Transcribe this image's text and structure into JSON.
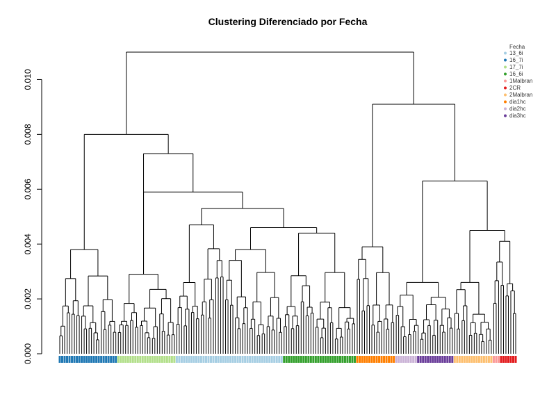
{
  "chart_data": {
    "type": "dendrogram",
    "title": "Clustering Diferenciado por Fecha",
    "xlabel": "",
    "ylabel": "",
    "ylim": [
      0,
      0.011
    ],
    "y_ticks": [
      "0.000",
      "0.002",
      "0.004",
      "0.006",
      "0.008",
      "0.010"
    ],
    "y_tick_values": [
      0,
      0.002,
      0.004,
      0.006,
      0.008,
      0.01
    ],
    "legend": {
      "title": "Fecha",
      "position": "top-right",
      "items": [
        {
          "label": "13_6i",
          "color": "#a6cee3"
        },
        {
          "label": "16_7i",
          "color": "#1f78b4"
        },
        {
          "label": "17_7i",
          "color": "#b2df8a"
        },
        {
          "label": "16_6i",
          "color": "#33a02c"
        },
        {
          "label": "1Malbran",
          "color": "#fb9a99"
        },
        {
          "label": "2CR",
          "color": "#e31a1c"
        },
        {
          "label": "2Malbran",
          "color": "#fdbf6f"
        },
        {
          "label": "dia1hc",
          "color": "#ff7f00"
        },
        {
          "label": "dia2hc",
          "color": "#cab2d6"
        },
        {
          "label": "dia3hc",
          "color": "#6a3d9a"
        }
      ]
    },
    "leaf_groups": [
      {
        "label": "16_7i",
        "count": 24
      },
      {
        "label": "17_7i",
        "count": 24
      },
      {
        "label": "13_6i",
        "count": 44
      },
      {
        "label": "16_6i",
        "count": 30
      },
      {
        "label": "dia1hc",
        "count": 16
      },
      {
        "label": "dia2hc",
        "count": 9
      },
      {
        "label": "dia3hc",
        "count": 15
      },
      {
        "label": "2Malbran",
        "count": 16
      },
      {
        "label": "1Malbran",
        "count": 3
      },
      {
        "label": "2CR",
        "count": 7
      }
    ],
    "merge_heights": {
      "root": 0.011,
      "left_main": 0.008,
      "left_a": 0.0038,
      "left_b": 0.0077,
      "mid_a": 0.0073,
      "mid_b": 0.0059,
      "mid_c": 0.0053,
      "mid_d": 0.0047,
      "right_main": 0.0091,
      "right_a": 0.0063,
      "right_b": 0.0045
    }
  }
}
